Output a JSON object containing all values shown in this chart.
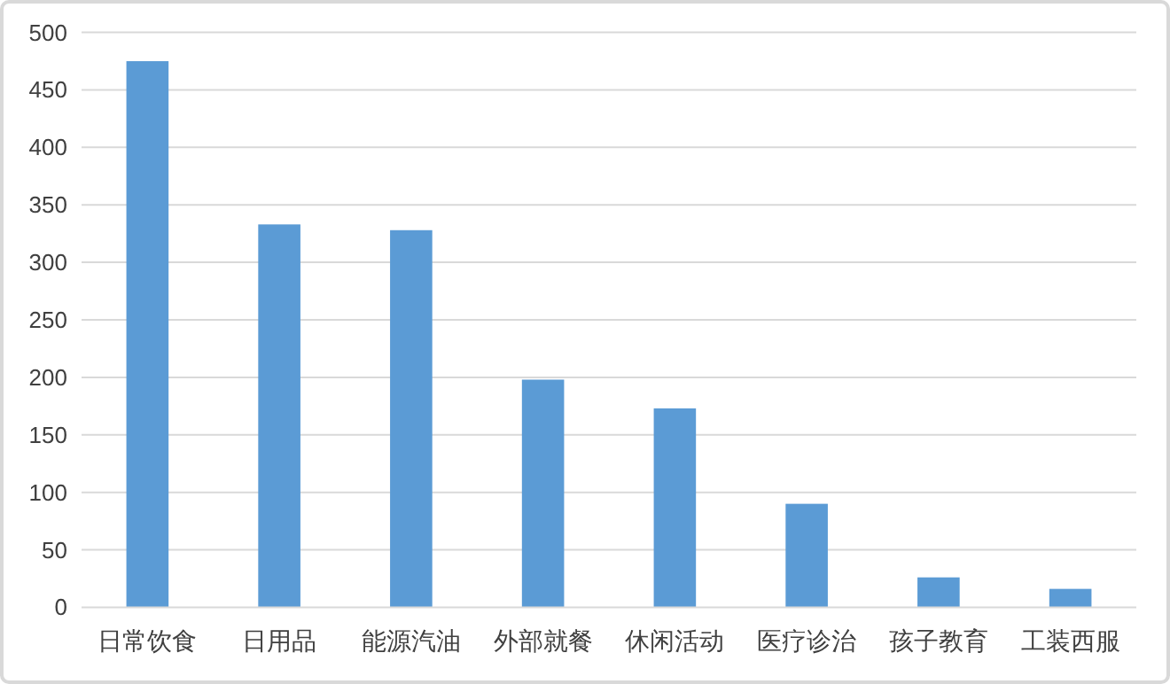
{
  "chart_data": {
    "type": "bar",
    "categories": [
      "日常饮食",
      "日用品",
      "能源汽油",
      "外部就餐",
      "休闲活动",
      "医疗诊治",
      "孩子教育",
      "工装西服"
    ],
    "values": [
      475,
      333,
      328,
      198,
      173,
      90,
      26,
      16
    ],
    "color": "#5b9bd5",
    "ylim": [
      0,
      500
    ],
    "yticks": [
      0,
      50,
      100,
      150,
      200,
      250,
      300,
      350,
      400,
      450,
      500
    ],
    "grid": "y"
  }
}
